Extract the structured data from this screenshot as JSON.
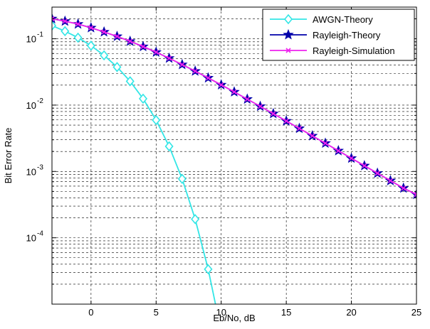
{
  "chart_data": {
    "type": "line",
    "title": "",
    "xlabel": "Eb/No, dB",
    "ylabel": "Bit Error Rate",
    "xlim": [
      -3,
      25
    ],
    "ylim": [
      1e-05,
      0.3
    ],
    "yscale": "log",
    "grid": true,
    "legend_position": "top-right",
    "x_ticks": [
      {
        "value": 0,
        "label": "0"
      },
      {
        "value": 5,
        "label": "5"
      },
      {
        "value": 10,
        "label": "10"
      },
      {
        "value": 15,
        "label": "15"
      },
      {
        "value": 20,
        "label": "20"
      },
      {
        "value": 25,
        "label": "25"
      }
    ],
    "y_ticks": [
      {
        "value": 0.1,
        "base": "10",
        "exp": "-1"
      },
      {
        "value": 0.01,
        "base": "10",
        "exp": "-2"
      },
      {
        "value": 0.001,
        "base": "10",
        "exp": "-3"
      },
      {
        "value": 0.0001,
        "base": "10",
        "exp": "-4"
      }
    ],
    "series": [
      {
        "name": "AWGN-Theory",
        "color": "#33e6e6",
        "marker": "diamond",
        "x": [
          -3,
          -2,
          -1,
          0,
          1,
          2,
          3,
          4,
          5,
          6,
          7,
          8,
          9,
          10
        ],
        "y": [
          0.158,
          0.13,
          0.104,
          0.0786,
          0.0563,
          0.0375,
          0.0229,
          0.0125,
          0.00595,
          0.00239,
          0.000773,
          0.000191,
          3.36e-05,
          3.87e-06
        ]
      },
      {
        "name": "Rayleigh-Theory",
        "color": "#0000aa",
        "marker": "star",
        "x": [
          -3,
          -2,
          -1,
          0,
          1,
          2,
          3,
          4,
          5,
          6,
          7,
          8,
          9,
          10,
          11,
          12,
          13,
          14,
          15,
          16,
          17,
          18,
          19,
          20,
          21,
          22,
          23,
          24,
          25
        ],
        "y": [
          0.2003,
          0.1838,
          0.1664,
          0.1464,
          0.1267,
          0.1085,
          0.0916,
          0.0763,
          0.0627,
          0.0509,
          0.0408,
          0.0325,
          0.0257,
          0.0202,
          0.0158,
          0.0123,
          0.00958,
          0.00743,
          0.00576,
          0.00445,
          0.00344,
          0.00266,
          0.00205,
          0.00158,
          0.00122,
          0.00094,
          0.000726,
          0.00056,
          0.00045
        ]
      },
      {
        "name": "Rayleigh-Simulation",
        "color": "#ee22ee",
        "marker": "x",
        "x": [
          -3,
          -2,
          -1,
          0,
          1,
          2,
          3,
          4,
          5,
          6,
          7,
          8,
          9,
          10,
          11,
          12,
          13,
          14,
          15,
          16,
          17,
          18,
          19,
          20,
          21,
          22,
          23,
          24,
          25
        ],
        "y": [
          0.2003,
          0.1838,
          0.1664,
          0.1464,
          0.1267,
          0.1085,
          0.0916,
          0.0763,
          0.0627,
          0.0509,
          0.0408,
          0.0325,
          0.0257,
          0.0202,
          0.0158,
          0.0123,
          0.00958,
          0.00743,
          0.00576,
          0.00445,
          0.00344,
          0.00266,
          0.00205,
          0.00158,
          0.00122,
          0.00094,
          0.000726,
          0.00056,
          0.00045
        ]
      }
    ]
  }
}
